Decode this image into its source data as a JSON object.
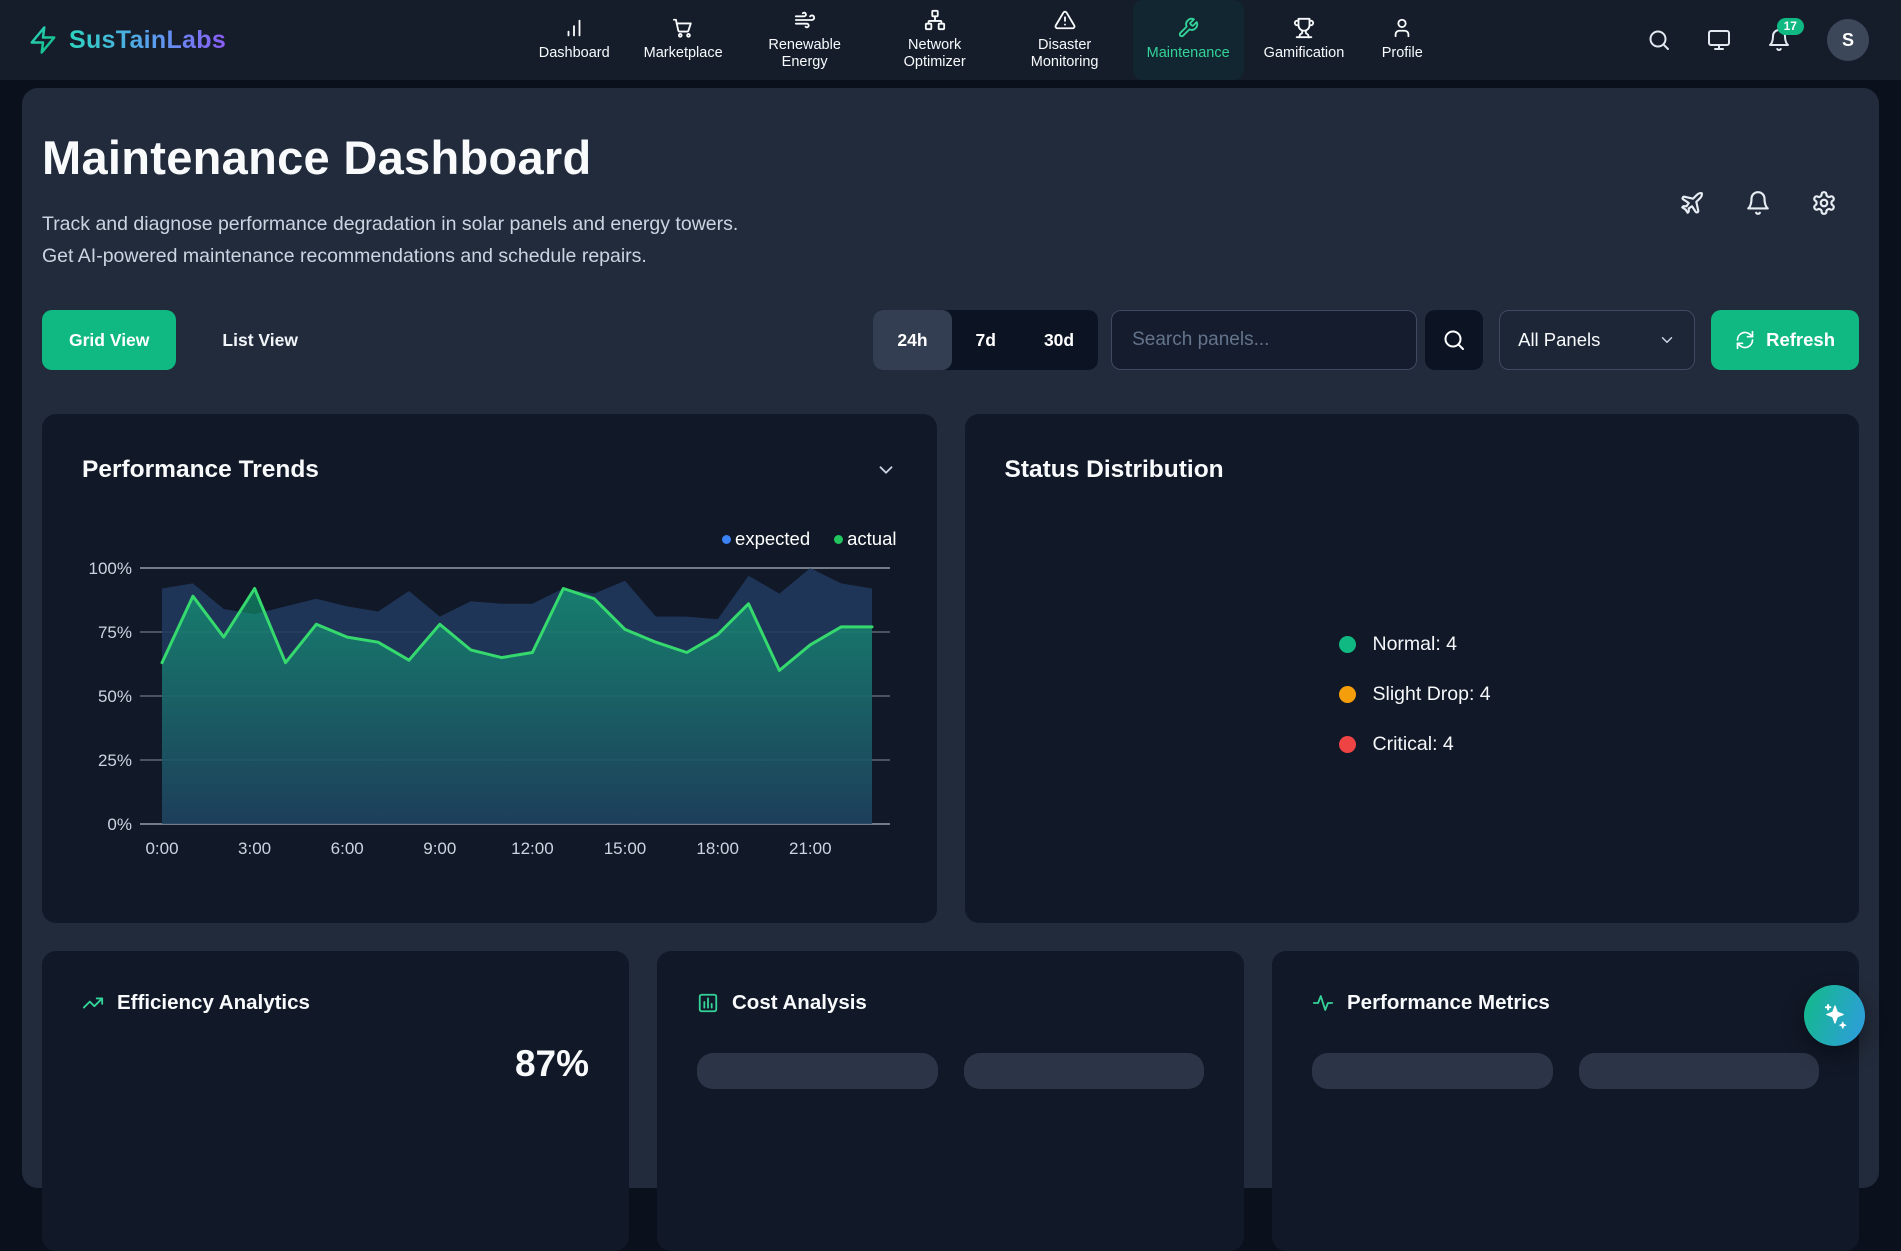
{
  "nav": {
    "brand": "SusTainLabs",
    "items": [
      {
        "label": "Dashboard",
        "icon": "bar-chart",
        "active": false
      },
      {
        "label": "Marketplace",
        "icon": "shopping-cart",
        "active": false
      },
      {
        "label": "Renewable Energy",
        "icon": "wind",
        "active": false
      },
      {
        "label": "Network Optimizer",
        "icon": "network",
        "active": false
      },
      {
        "label": "Disaster Monitoring",
        "icon": "alert-triangle",
        "active": false
      },
      {
        "label": "Maintenance",
        "icon": "wrench",
        "active": true
      },
      {
        "label": "Gamification",
        "icon": "trophy",
        "active": false
      },
      {
        "label": "Profile",
        "icon": "user",
        "active": false
      }
    ],
    "notification_count": "17",
    "avatar_initial": "S"
  },
  "header": {
    "title": "Maintenance Dashboard",
    "subtitle": "Track and diagnose performance degradation in solar panels and energy towers. Get AI-powered maintenance recommendations and schedule repairs."
  },
  "toolbar": {
    "grid_view_label": "Grid View",
    "list_view_label": "List View",
    "time_ranges": [
      "24h",
      "7d",
      "30d"
    ],
    "active_range": "24h",
    "search_placeholder": "Search panels...",
    "filter_value": "All Panels",
    "refresh_label": "Refresh"
  },
  "trends_panel": {
    "title": "Performance Trends"
  },
  "status_panel": {
    "title": "Status Distribution",
    "legend": [
      {
        "label": "Normal: 4",
        "color": "#10b981"
      },
      {
        "label": "Slight Drop: 4",
        "color": "#f59e0b"
      },
      {
        "label": "Critical: 4",
        "color": "#ef4444"
      }
    ]
  },
  "bottom_cards": [
    {
      "title": "Efficiency Analytics",
      "icon": "trending-up",
      "value": "87%"
    },
    {
      "title": "Cost Analysis",
      "icon": "chart-bars",
      "value": ""
    },
    {
      "title": "Performance Metrics",
      "icon": "activity",
      "value": ""
    }
  ],
  "chart_data": [
    {
      "type": "area",
      "title": "Performance Trends",
      "x_unit": "hour of day",
      "x_tick_hours": [
        0,
        3,
        6,
        9,
        12,
        15,
        18,
        21
      ],
      "x_tick_labels": [
        "0:00",
        "3:00",
        "6:00",
        "9:00",
        "12:00",
        "15:00",
        "18:00",
        "21:00"
      ],
      "y_tick_labels": [
        "0%",
        "25%",
        "50%",
        "75%",
        "100%"
      ],
      "ylim": [
        0,
        100
      ],
      "grid": true,
      "legend_position": "top-right",
      "series": [
        {
          "name": "expected",
          "color": "#3b82f6",
          "fill": "#20395f",
          "values": [
            92,
            94,
            84,
            82,
            85,
            88,
            85,
            83,
            91,
            81,
            87,
            86,
            86,
            92,
            90,
            95,
            81,
            81,
            80,
            97,
            90,
            100,
            94,
            92
          ]
        },
        {
          "name": "actual",
          "color": "#22c55e",
          "fill": "#10b981",
          "values": [
            63,
            89,
            73,
            92,
            63,
            78,
            73,
            71,
            64,
            78,
            68,
            65,
            67,
            92,
            88,
            76,
            71,
            67,
            74,
            86,
            60,
            70,
            77,
            77
          ]
        }
      ]
    },
    {
      "type": "pie",
      "title": "Status Distribution",
      "categories": [
        "Normal",
        "Slight Drop",
        "Critical"
      ],
      "values": [
        4,
        4,
        4
      ],
      "colors": [
        "#10b981",
        "#f59e0b",
        "#ef4444"
      ],
      "legend_labels": [
        "Normal: 4",
        "Slight Drop: 4",
        "Critical: 4"
      ]
    }
  ]
}
